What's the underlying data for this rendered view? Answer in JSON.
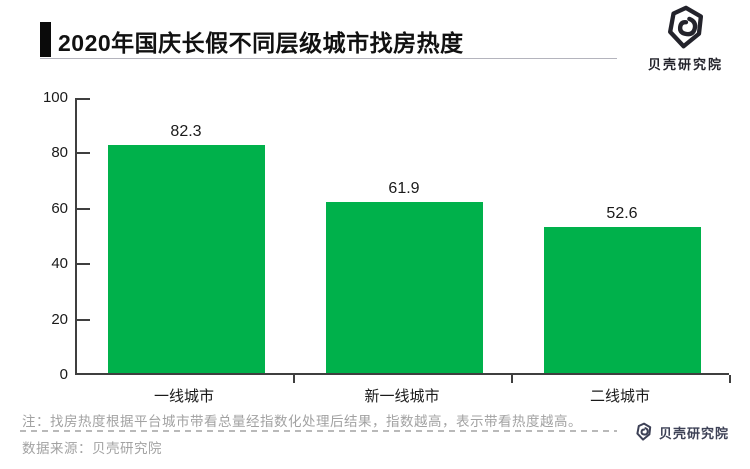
{
  "header": {
    "title": "2020年国庆长假不同层级城市找房热度"
  },
  "branding": {
    "logo_text_top": "贝壳研究院",
    "logo_text_bottom": "贝壳研究院",
    "logo_color_top": "#23232b",
    "logo_color_bottom": "#3d4156"
  },
  "chart_data": {
    "type": "bar",
    "title": "2020年国庆长假不同层级城市找房热度",
    "categories": [
      "一线城市",
      "新一线城市",
      "二线城市"
    ],
    "values": [
      82.3,
      61.9,
      52.6
    ],
    "data_labels": [
      "82.3",
      "61.9",
      "52.6"
    ],
    "xlabel": "",
    "ylabel": "",
    "ylim": [
      0,
      100
    ],
    "yticks": [
      0,
      20,
      40,
      60,
      80,
      100
    ],
    "grid": false,
    "legend": "none",
    "bar_color": "#00b14b",
    "axis_color": "#3f3f3f"
  },
  "footer": {
    "note": "注：找房热度根据平台城市带看总量经指数化处理后结果，指数越高，表示带看热度越高。",
    "source": "数据来源：贝壳研究院"
  }
}
